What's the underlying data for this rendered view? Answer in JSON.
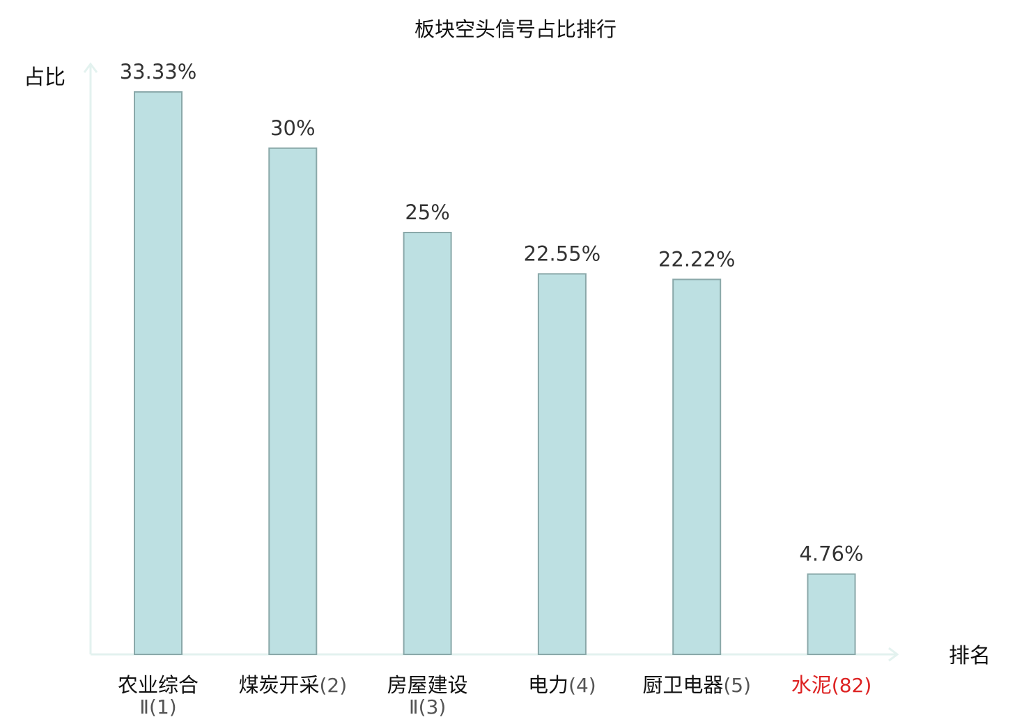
{
  "chart_data": {
    "type": "bar",
    "title": "板块空头信号占比排行",
    "ylabel": "占比",
    "xlabel": "排名",
    "ylim": [
      0,
      35
    ],
    "grid": false,
    "legend": "none",
    "categories": [
      {
        "name": "农业综合",
        "rank": "Ⅱ(1)",
        "wrap": true,
        "highlight": false
      },
      {
        "name": "煤炭开采",
        "rank": "(2)",
        "wrap": false,
        "highlight": false
      },
      {
        "name": "房屋建设",
        "rank": "Ⅱ(3)",
        "wrap": true,
        "highlight": false
      },
      {
        "name": "电力",
        "rank": "(4)",
        "wrap": false,
        "highlight": false
      },
      {
        "name": "厨卫电器",
        "rank": "(5)",
        "wrap": false,
        "highlight": false
      },
      {
        "name": "水泥",
        "rank": "(82)",
        "wrap": false,
        "highlight": true
      }
    ],
    "values": [
      33.33,
      30,
      25,
      22.55,
      22.22,
      4.76
    ],
    "value_labels": [
      "33.33%",
      "30%",
      "25%",
      "22.55%",
      "22.22%",
      "4.76%"
    ],
    "colors": {
      "bar_fill": "#bde0e2",
      "bar_stroke": "#8aa8a9",
      "axis": "#e3f2ef",
      "name_text": "#111111",
      "rank_text": "#555555",
      "highlight_text": "#dd2222"
    }
  }
}
